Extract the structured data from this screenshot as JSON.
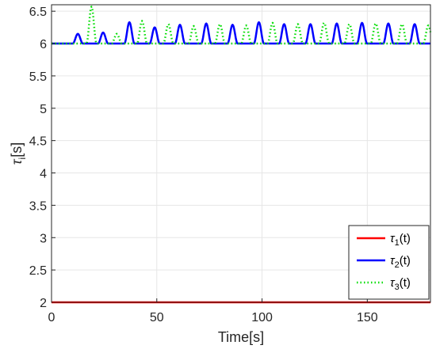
{
  "chart_data": {
    "type": "line",
    "title": "",
    "xlabel": "Time[s]",
    "ylabel": {
      "base": "τ",
      "sub": "i",
      "rest": "[s]"
    },
    "xlim": [
      0,
      180
    ],
    "ylim": [
      2,
      6.6
    ],
    "xticks": [
      0,
      50,
      100,
      150
    ],
    "xtick_labels": [
      "0",
      "50",
      "100",
      "150"
    ],
    "yticks": [
      2,
      2.5,
      3,
      3.5,
      4,
      4.5,
      5,
      5.5,
      6,
      6.5
    ],
    "ytick_labels": [
      "2",
      "2.5",
      "3",
      "3.5",
      "4",
      "4.5",
      "5",
      "5.5",
      "6",
      "6.5"
    ],
    "grid": true,
    "legend_position": "bottom-right",
    "series": [
      {
        "name": "τ1(t)",
        "label": {
          "base": "τ",
          "sub": "1",
          "rest": "(t)"
        },
        "color": "#ff0000",
        "style": "solid",
        "constant": 2.0
      },
      {
        "name": "τ2(t)",
        "label": {
          "base": "τ",
          "sub": "2",
          "rest": "(t)"
        },
        "color": "#0000ff",
        "style": "solid",
        "baseline": 6.0,
        "peaks": [
          [
            12.5,
            6.15
          ],
          [
            24.5,
            6.17
          ],
          [
            37,
            6.33
          ],
          [
            49,
            6.25
          ],
          [
            61,
            6.29
          ],
          [
            73.5,
            6.31
          ],
          [
            86,
            6.29
          ],
          [
            98.5,
            6.33
          ],
          [
            110.5,
            6.3
          ],
          [
            123,
            6.3
          ],
          [
            135.5,
            6.31
          ],
          [
            147.5,
            6.32
          ],
          [
            160,
            6.31
          ],
          [
            172.5,
            6.3
          ]
        ],
        "halfwidth": 2.4
      },
      {
        "name": "τ3(t)",
        "label": {
          "base": "τ",
          "sub": "3",
          "rest": "(t)"
        },
        "color": "#00dd00",
        "style": "dotted",
        "baseline": 6.0,
        "peaks": [
          [
            19,
            6.57
          ],
          [
            31,
            6.15
          ],
          [
            43,
            6.35
          ],
          [
            55.5,
            6.3
          ],
          [
            67.5,
            6.27
          ],
          [
            80,
            6.3
          ],
          [
            92.5,
            6.28
          ],
          [
            105,
            6.32
          ],
          [
            117,
            6.3
          ],
          [
            129.5,
            6.32
          ],
          [
            141.5,
            6.3
          ],
          [
            154,
            6.31
          ],
          [
            166.5,
            6.3
          ],
          [
            179,
            6.28
          ]
        ],
        "halfwidth": 2.4
      }
    ]
  }
}
